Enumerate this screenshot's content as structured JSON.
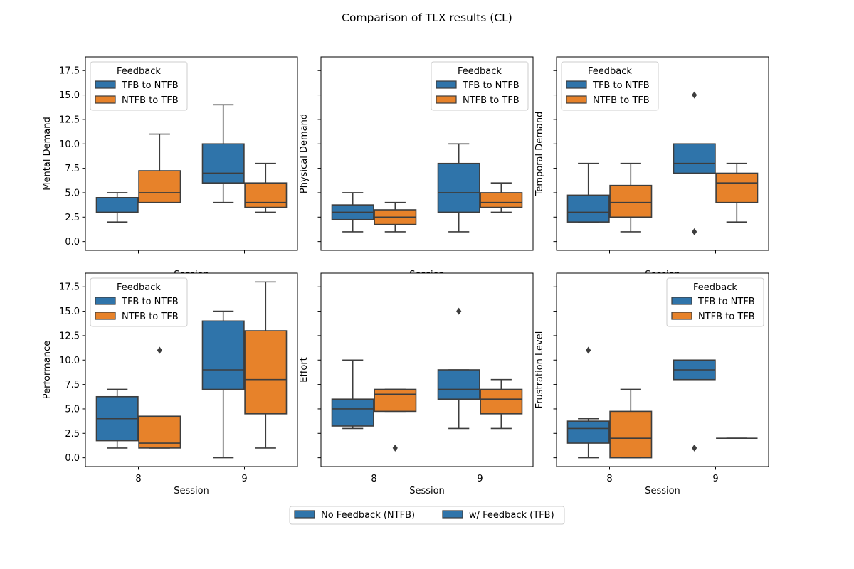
{
  "figure": {
    "title": "Comparison of TLX results (CL)",
    "hue_colors": {
      "TFB to NTFB": "#2f74aa",
      "NTFB to TFB": "#e7822a"
    },
    "edge_color": "#3d3d3d",
    "outlier_marker": "diamond"
  },
  "figure_legend": {
    "placement": "bottom-center",
    "entries": [
      {
        "label": "No Feedback (NTFB)",
        "color": "#2f74aa"
      },
      {
        "label": "w/ Feedback (TFB)",
        "color": "#2f74aa"
      }
    ]
  },
  "chart_data": [
    {
      "type": "box",
      "ylabel": "Mental Demand",
      "xlabel": "Session",
      "categories": [
        "8",
        "9"
      ],
      "ylim": [
        -0.9,
        18.9
      ],
      "yticks": [
        "0.0",
        "2.5",
        "5.0",
        "7.5",
        "10.0",
        "12.5",
        "15.0",
        "17.5"
      ],
      "show_xticklabels": false,
      "show_yticklabels": true,
      "legend": {
        "title": "Feedback",
        "placement": "upper left",
        "entries": [
          "TFB to NTFB",
          "NTFB to TFB"
        ]
      },
      "series": [
        {
          "name": "TFB to NTFB",
          "boxes": [
            {
              "whislo": 2,
              "q1": 3,
              "med": 4.5,
              "q3": 4.5,
              "whishi": 5,
              "fliers": []
            },
            {
              "whislo": 4,
              "q1": 6,
              "med": 7,
              "q3": 10,
              "whishi": 14,
              "fliers": []
            }
          ]
        },
        {
          "name": "NTFB to TFB",
          "boxes": [
            {
              "whislo": 4,
              "q1": 4,
              "med": 5,
              "q3": 7.25,
              "whishi": 11,
              "fliers": []
            },
            {
              "whislo": 3,
              "q1": 3.5,
              "med": 4,
              "q3": 6,
              "whishi": 8,
              "fliers": []
            }
          ]
        }
      ]
    },
    {
      "type": "box",
      "ylabel": "Physical Demand",
      "xlabel": "Session",
      "categories": [
        "8",
        "9"
      ],
      "ylim": [
        -0.9,
        18.9
      ],
      "yticks": [
        "0.0",
        "2.5",
        "5.0",
        "7.5",
        "10.0",
        "12.5",
        "15.0",
        "17.5"
      ],
      "show_xticklabels": false,
      "show_yticklabels": false,
      "legend": {
        "title": "Feedback",
        "placement": "upper right",
        "entries": [
          "TFB to NTFB",
          "NTFB to TFB"
        ]
      },
      "series": [
        {
          "name": "TFB to NTFB",
          "boxes": [
            {
              "whislo": 1,
              "q1": 2.25,
              "med": 3,
              "q3": 3.75,
              "whishi": 5,
              "fliers": []
            },
            {
              "whislo": 1,
              "q1": 3,
              "med": 5,
              "q3": 8,
              "whishi": 10,
              "fliers": []
            }
          ]
        },
        {
          "name": "NTFB to TFB",
          "boxes": [
            {
              "whislo": 1,
              "q1": 1.75,
              "med": 2.5,
              "q3": 3.25,
              "whishi": 4,
              "fliers": []
            },
            {
              "whislo": 3,
              "q1": 3.5,
              "med": 4,
              "q3": 5,
              "whishi": 6,
              "fliers": []
            }
          ]
        }
      ]
    },
    {
      "type": "box",
      "ylabel": "Temporal Demand",
      "xlabel": "Session",
      "categories": [
        "8",
        "9"
      ],
      "ylim": [
        -0.9,
        18.9
      ],
      "yticks": [
        "0.0",
        "2.5",
        "5.0",
        "7.5",
        "10.0",
        "12.5",
        "15.0",
        "17.5"
      ],
      "show_xticklabels": false,
      "show_yticklabels": false,
      "legend": {
        "title": "Feedback",
        "placement": "upper left",
        "entries": [
          "TFB to NTFB",
          "NTFB to TFB"
        ]
      },
      "series": [
        {
          "name": "TFB to NTFB",
          "boxes": [
            {
              "whislo": 2,
              "q1": 2,
              "med": 3,
              "q3": 4.75,
              "whishi": 8,
              "fliers": []
            },
            {
              "whislo": 7,
              "q1": 7,
              "med": 8,
              "q3": 10,
              "whishi": 10,
              "fliers": [
                1,
                15
              ]
            }
          ]
        },
        {
          "name": "NTFB to TFB",
          "boxes": [
            {
              "whislo": 1,
              "q1": 2.5,
              "med": 4,
              "q3": 5.75,
              "whishi": 8,
              "fliers": []
            },
            {
              "whislo": 2,
              "q1": 4,
              "med": 6,
              "q3": 7,
              "whishi": 8,
              "fliers": []
            }
          ]
        }
      ]
    },
    {
      "type": "box",
      "ylabel": "Performance",
      "xlabel": "Session",
      "categories": [
        "8",
        "9"
      ],
      "ylim": [
        -0.9,
        18.9
      ],
      "yticks": [
        "0.0",
        "2.5",
        "5.0",
        "7.5",
        "10.0",
        "12.5",
        "15.0",
        "17.5"
      ],
      "show_xticklabels": true,
      "show_yticklabels": true,
      "legend": {
        "title": "Feedback",
        "placement": "upper left",
        "entries": [
          "TFB to NTFB",
          "NTFB to TFB"
        ]
      },
      "series": [
        {
          "name": "TFB to NTFB",
          "boxes": [
            {
              "whislo": 1,
              "q1": 1.75,
              "med": 4,
              "q3": 6.25,
              "whishi": 7,
              "fliers": []
            },
            {
              "whislo": 0,
              "q1": 7,
              "med": 9,
              "q3": 14,
              "whishi": 15,
              "fliers": []
            }
          ]
        },
        {
          "name": "NTFB to TFB",
          "boxes": [
            {
              "whislo": 1,
              "q1": 1,
              "med": 1.5,
              "q3": 4.25,
              "whishi": 4.25,
              "fliers": [
                11
              ]
            },
            {
              "whislo": 1,
              "q1": 4.5,
              "med": 8,
              "q3": 13,
              "whishi": 18,
              "fliers": []
            }
          ]
        }
      ]
    },
    {
      "type": "box",
      "ylabel": "Effort",
      "xlabel": "Session",
      "categories": [
        "8",
        "9"
      ],
      "ylim": [
        -0.9,
        18.9
      ],
      "yticks": [
        "0.0",
        "2.5",
        "5.0",
        "7.5",
        "10.0",
        "12.5",
        "15.0",
        "17.5"
      ],
      "show_xticklabels": true,
      "show_yticklabels": false,
      "legend": null,
      "series": [
        {
          "name": "TFB to NTFB",
          "boxes": [
            {
              "whislo": 3,
              "q1": 3.25,
              "med": 5,
              "q3": 6,
              "whishi": 10,
              "fliers": []
            },
            {
              "whislo": 3,
              "q1": 6,
              "med": 7,
              "q3": 9,
              "whishi": 9,
              "fliers": [
                15
              ]
            }
          ]
        },
        {
          "name": "NTFB to TFB",
          "boxes": [
            {
              "whislo": 4.75,
              "q1": 4.75,
              "med": 6.5,
              "q3": 7,
              "whishi": 7,
              "fliers": [
                1
              ]
            },
            {
              "whislo": 3,
              "q1": 4.5,
              "med": 6,
              "q3": 7,
              "whishi": 8,
              "fliers": []
            }
          ]
        }
      ]
    },
    {
      "type": "box",
      "ylabel": "Frustration Level",
      "xlabel": "Session",
      "categories": [
        "8",
        "9"
      ],
      "ylim": [
        -0.9,
        18.9
      ],
      "yticks": [
        "0.0",
        "2.5",
        "5.0",
        "7.5",
        "10.0",
        "12.5",
        "15.0",
        "17.5"
      ],
      "show_xticklabels": true,
      "show_yticklabels": false,
      "legend": {
        "title": "Feedback",
        "placement": "upper right",
        "entries": [
          "TFB to NTFB",
          "NTFB to TFB"
        ]
      },
      "series": [
        {
          "name": "TFB to NTFB",
          "boxes": [
            {
              "whislo": 0,
              "q1": 1.5,
              "med": 3,
              "q3": 3.75,
              "whishi": 4,
              "fliers": [
                11
              ]
            },
            {
              "whislo": 8,
              "q1": 8,
              "med": 9,
              "q3": 10,
              "whishi": 10,
              "fliers": [
                1
              ]
            }
          ]
        },
        {
          "name": "NTFB to TFB",
          "boxes": [
            {
              "whislo": 0,
              "q1": 0,
              "med": 2,
              "q3": 4.75,
              "whishi": 7,
              "fliers": []
            },
            {
              "whislo": 2,
              "q1": 2,
              "med": 2,
              "q3": 2,
              "whishi": 2,
              "fliers": []
            }
          ]
        }
      ]
    }
  ]
}
